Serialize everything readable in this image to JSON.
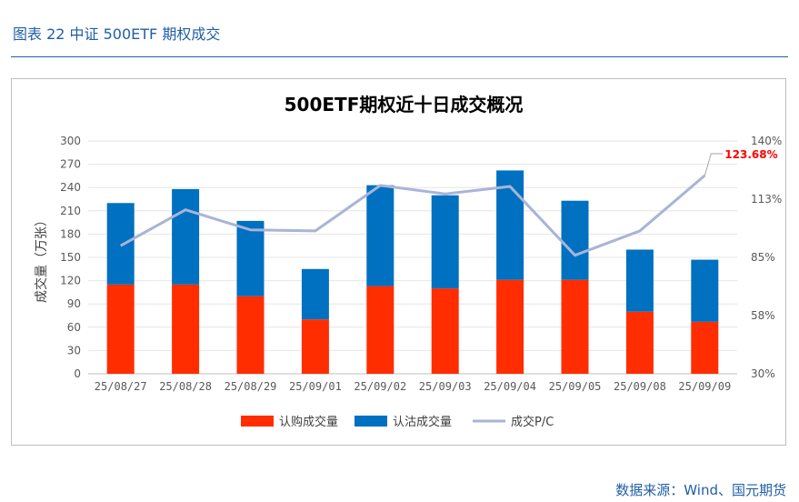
{
  "caption": "图表 22  中证 500ETF 期权成交",
  "source": "数据来源：Wind、国元期货",
  "colors": {
    "call": "#ff2d00",
    "put": "#0070c0",
    "pc_line": "#a9b4d6",
    "callout": "#ff0000",
    "caption": "#1f5fa6"
  },
  "chart_data": {
    "type": "bar",
    "title": "500ETF期权近十日成交概况",
    "ylabel": "成交量（万张）",
    "categories": [
      "25/08/27",
      "25/08/28",
      "25/08/29",
      "25/09/01",
      "25/09/02",
      "25/09/03",
      "25/09/04",
      "25/09/05",
      "25/09/08",
      "25/09/09"
    ],
    "series": [
      {
        "name": "认购成交量",
        "type": "stacked-bar",
        "values": [
          115,
          115,
          100,
          70,
          113,
          110,
          121,
          121,
          80,
          67
        ]
      },
      {
        "name": "认沽成交量",
        "type": "stacked-bar",
        "values": [
          105,
          123,
          97,
          65,
          130,
          120,
          141,
          102,
          80,
          80
        ]
      },
      {
        "name": "成交P/C",
        "type": "line",
        "axis": "right",
        "values": [
          90.5,
          107.5,
          98.0,
          97.5,
          119.0,
          115.0,
          118.5,
          86.0,
          97.5,
          123.68
        ]
      }
    ],
    "ylim": [
      0,
      300
    ],
    "yticks": [
      "0",
      "30",
      "60",
      "90",
      "120",
      "150",
      "180",
      "210",
      "240",
      "270",
      "300"
    ],
    "y2lim": [
      30,
      140
    ],
    "y2ticks": [
      "30%",
      "58%",
      "85%",
      "113%",
      "140%"
    ],
    "callout": "123.68%",
    "legend_position": "bottom"
  }
}
